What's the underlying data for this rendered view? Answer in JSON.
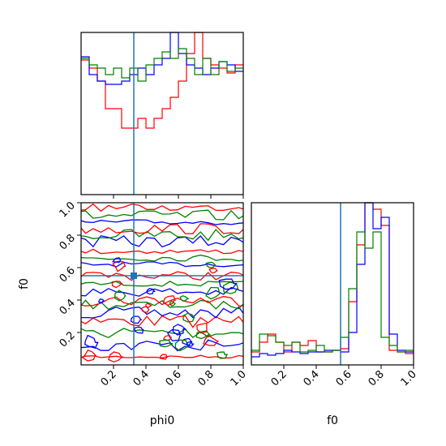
{
  "chart_data": {
    "type": "corner",
    "colors": {
      "run_red": "#ff0000",
      "run_blue": "#0000ff",
      "run_green": "#008000",
      "truth": "#1f77b4"
    },
    "truth": {
      "phi0": 0.325,
      "f0": 0.55
    },
    "xlabels": {
      "phi0": "phi0",
      "f0": "f0"
    },
    "ylabels": {
      "f0": "f0"
    },
    "ticks": {
      "phi0": {
        "values": [
          0.2,
          0.4,
          0.6,
          0.8,
          1.0
        ],
        "labels": [
          "0.2",
          "0.4",
          "0.6",
          "0.8",
          "1.0"
        ],
        "range": [
          0,
          1
        ]
      },
      "f0_x": {
        "values": [
          0.2,
          0.4,
          0.6,
          0.8,
          1.0
        ],
        "labels": [
          "0.2",
          "0.4",
          "0.6",
          "0.8",
          "1.0"
        ],
        "range": [
          0,
          1
        ]
      },
      "f0_y": {
        "values": [
          0.2,
          0.4,
          0.6,
          0.8,
          1.0
        ],
        "labels": [
          "0.2",
          "0.4",
          "0.6",
          "0.8",
          "1.0"
        ],
        "range": [
          0,
          1
        ]
      }
    },
    "hist_phi0": {
      "bins": 20,
      "ymax": 1.0,
      "series": [
        {
          "color": "red",
          "values": [
            0.83,
            0.78,
            0.7,
            0.53,
            0.53,
            0.41,
            0.41,
            0.47,
            0.41,
            0.47,
            0.53,
            0.6,
            0.7,
            0.87,
            1.0,
            0.84,
            0.8,
            0.78,
            0.75,
            0.8
          ]
        },
        {
          "color": "blue",
          "values": [
            0.85,
            0.74,
            0.7,
            0.68,
            0.68,
            0.7,
            0.74,
            0.78,
            0.74,
            0.8,
            0.84,
            1.0,
            0.87,
            0.8,
            0.78,
            0.74,
            0.78,
            0.82,
            0.8,
            0.76
          ]
        },
        {
          "color": "green",
          "values": [
            0.84,
            0.8,
            0.78,
            0.74,
            0.78,
            0.72,
            0.78,
            0.7,
            0.8,
            0.84,
            0.88,
            0.84,
            0.9,
            0.84,
            0.74,
            0.84,
            0.74,
            0.82,
            0.76,
            0.78
          ]
        }
      ]
    },
    "hist_f0": {
      "bins": 20,
      "ymax": 1.0,
      "series": [
        {
          "color": "red",
          "values": [
            0.08,
            0.14,
            0.19,
            0.14,
            0.08,
            0.14,
            0.12,
            0.15,
            0.08,
            0.08,
            0.09,
            0.1,
            0.39,
            0.74,
            1.0,
            0.96,
            0.86,
            0.09,
            0.08,
            0.07
          ]
        },
        {
          "color": "blue",
          "values": [
            0.05,
            0.07,
            0.06,
            0.07,
            0.09,
            0.08,
            0.07,
            0.08,
            0.08,
            0.09,
            0.09,
            0.08,
            0.2,
            0.62,
            1.0,
            0.84,
            0.91,
            0.19,
            0.09,
            0.08
          ]
        },
        {
          "color": "green",
          "values": [
            0.09,
            0.19,
            0.18,
            0.14,
            0.12,
            0.14,
            0.08,
            0.09,
            0.12,
            0.08,
            0.09,
            0.17,
            0.47,
            0.82,
            0.72,
            0.82,
            0.17,
            0.12,
            0.08,
            0.09
          ]
        }
      ]
    },
    "contour_levels_f0": [
      0.05,
      0.12,
      0.2,
      0.27,
      0.32,
      0.37,
      0.4,
      0.45,
      0.5,
      0.55,
      0.62,
      0.66,
      0.7,
      0.76,
      0.8,
      0.84,
      0.88,
      0.92,
      0.97
    ]
  }
}
